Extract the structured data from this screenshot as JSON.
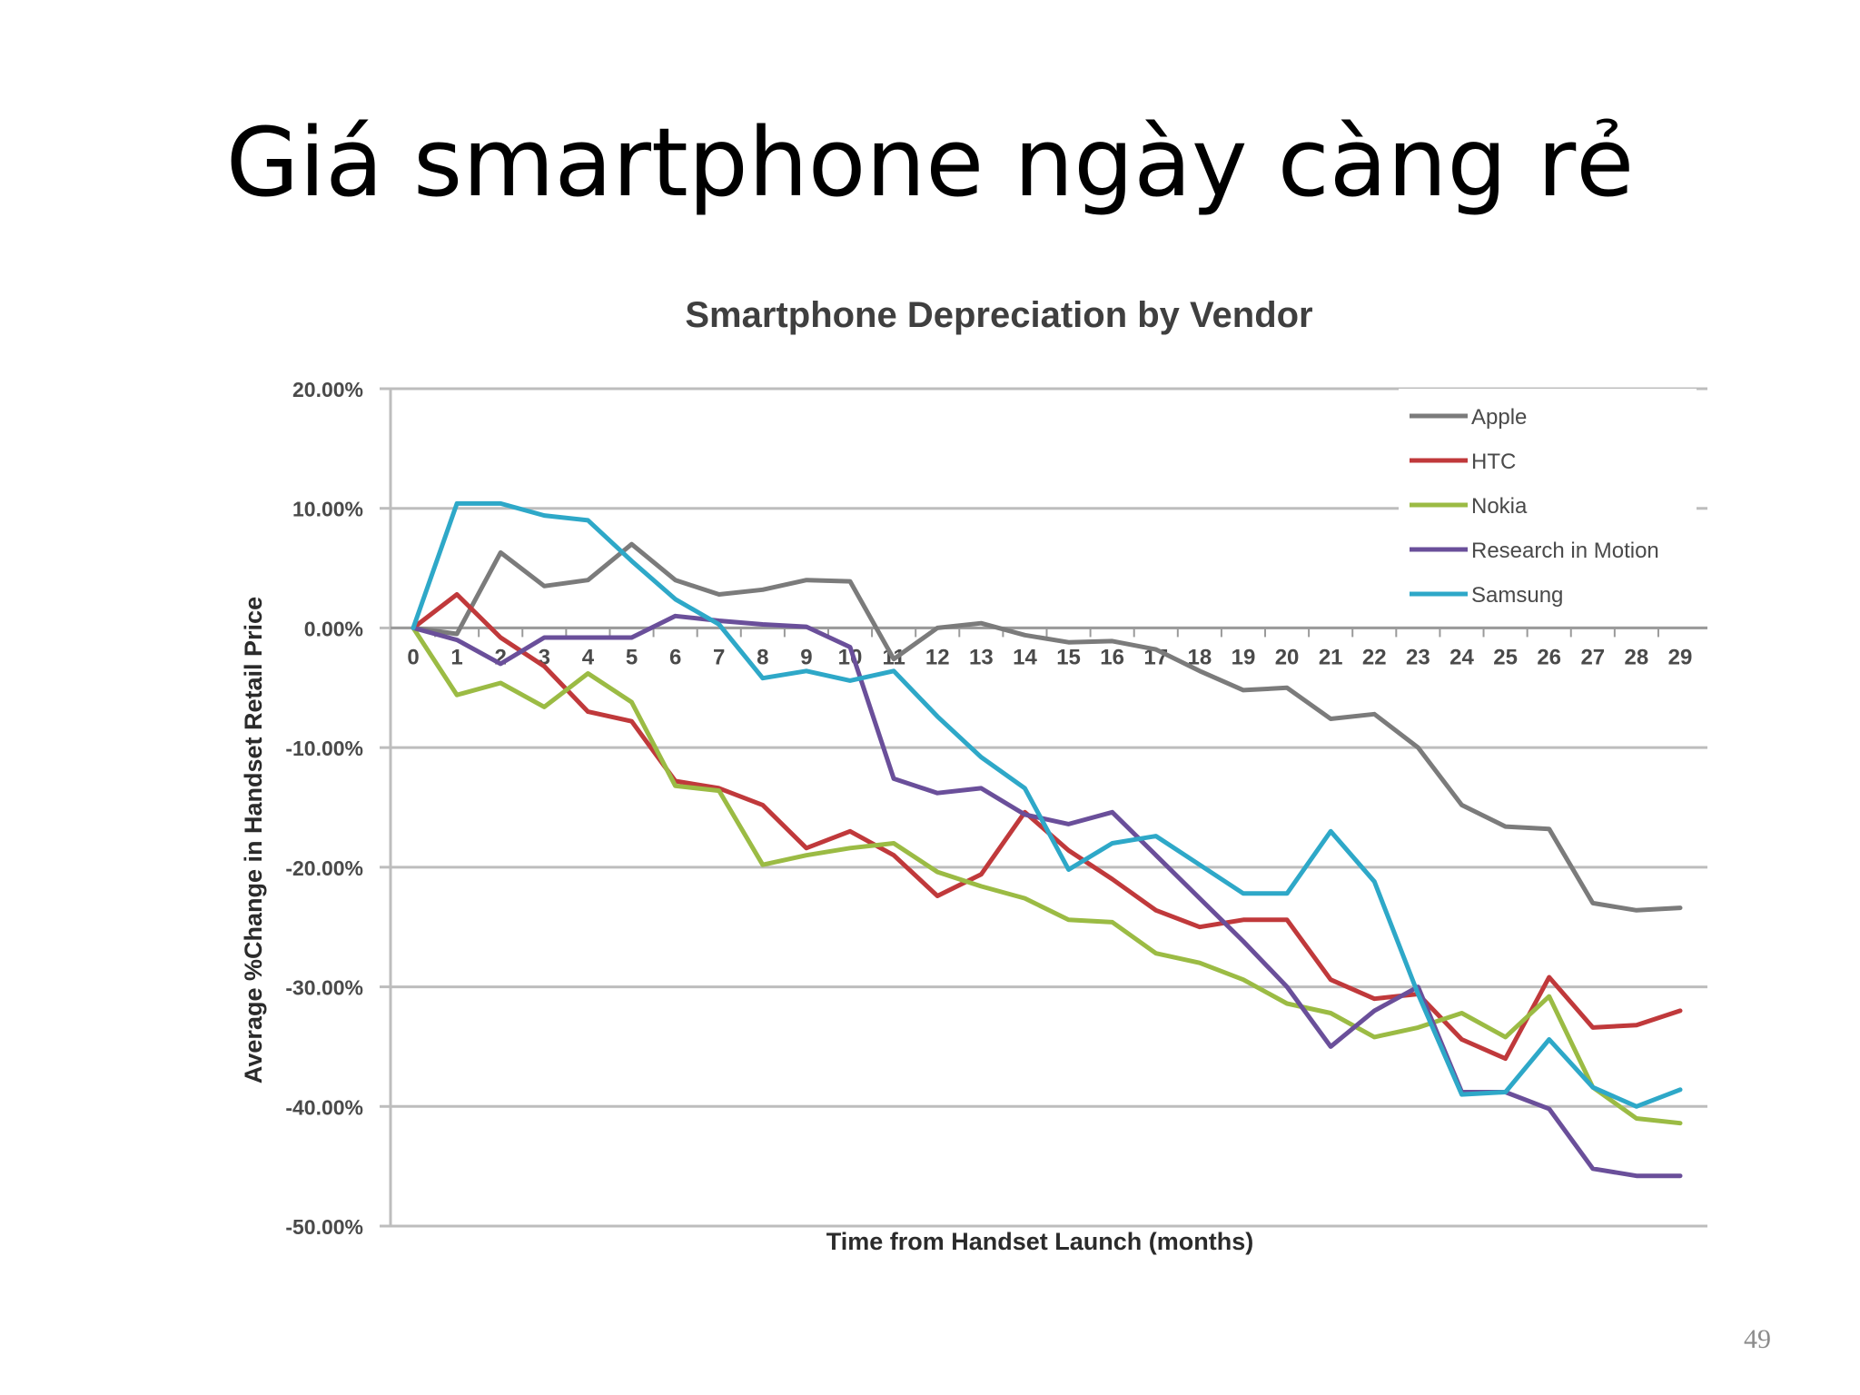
{
  "slide": {
    "title": "Giá smartphone ngày càng rẻ",
    "page_number": "49"
  },
  "chart_data": {
    "type": "line",
    "title": "Smartphone Depreciation by Vendor",
    "xlabel": "Time from Handset Launch (months)",
    "ylabel": "Average %Change in Handset Retail Price",
    "x": [
      0,
      1,
      2,
      3,
      4,
      5,
      6,
      7,
      8,
      9,
      10,
      11,
      12,
      13,
      14,
      15,
      16,
      17,
      18,
      19,
      20,
      21,
      22,
      23,
      24,
      25,
      26,
      27,
      28,
      29
    ],
    "ylim": [
      -50,
      20
    ],
    "yticks": [
      20,
      10,
      0,
      -10,
      -20,
      -30,
      -40,
      -50
    ],
    "ytick_labels": [
      "20.00%",
      "10.00%",
      "0.00%",
      "-10.00%",
      "-20.00%",
      "-30.00%",
      "-40.00%",
      "-50.00%"
    ],
    "xtick_labels": [
      "0",
      "1",
      "2",
      "3",
      "4",
      "5",
      "6",
      "7",
      "8",
      "9",
      "10",
      "11",
      "12",
      "13",
      "14",
      "15",
      "16",
      "17",
      "18",
      "19",
      "20",
      "21",
      "22",
      "23",
      "24",
      "25",
      "26",
      "27",
      "28",
      "29"
    ],
    "grid": "horizontal",
    "legend_position": "top-right",
    "series": [
      {
        "name": "Apple",
        "color": "#7b7b7b",
        "values": [
          0,
          -0.5,
          6.3,
          3.5,
          4,
          7,
          4,
          2.8,
          3.2,
          4,
          3.9,
          -2.6,
          0,
          0.4,
          -0.6,
          -1.2,
          -1.1,
          -1.8,
          -3.6,
          -5.2,
          -5,
          -7.6,
          -7.2,
          -10,
          -14.8,
          -16.6,
          -16.8,
          -23,
          -23.6,
          -23.4
        ]
      },
      {
        "name": "HTC",
        "color": "#c0393b",
        "values": [
          0,
          2.8,
          -0.8,
          -3.2,
          -7,
          -7.8,
          -12.8,
          -13.4,
          -14.8,
          -18.4,
          -17,
          -19,
          -22.4,
          -20.6,
          -15.4,
          -18.6,
          -21,
          -23.6,
          -25,
          -24.4,
          -24.4,
          -29.4,
          -31,
          -30.6,
          -34.4,
          -36,
          -29.2,
          -33.4,
          -33.2,
          -32
        ]
      },
      {
        "name": "Nokia",
        "color": "#9bbb44",
        "values": [
          0,
          -5.6,
          -4.6,
          -6.6,
          -3.8,
          -6.2,
          -13.2,
          -13.6,
          -19.8,
          -19,
          -18.4,
          -18,
          -20.4,
          -21.6,
          -22.6,
          -24.4,
          -24.6,
          -27.2,
          -28,
          -29.4,
          -31.4,
          -32.2,
          -34.2,
          -33.4,
          -32.2,
          -34.2,
          -30.8,
          -38.4,
          -41,
          -41.4
        ]
      },
      {
        "name": "Research in Motion",
        "color": "#6a4f9a",
        "values": [
          0,
          -1,
          -3,
          -0.8,
          -0.8,
          -0.8,
          1,
          0.6,
          0.3,
          0.1,
          -1.6,
          -12.6,
          -13.8,
          -13.4,
          -15.6,
          -16.4,
          -15.4,
          -19,
          -22.6,
          -26.2,
          -30,
          -35,
          -32,
          -30,
          -38.8,
          -38.8,
          -40.2,
          -45.2,
          -45.8,
          -45.8
        ]
      },
      {
        "name": "Samsung",
        "color": "#2ea8c8",
        "values": [
          0,
          10.4,
          10.4,
          9.4,
          9,
          5.6,
          2.4,
          0.3,
          -4.2,
          -3.6,
          -4.4,
          -3.6,
          -7.4,
          -10.8,
          -13.4,
          -20.2,
          -18,
          -17.4,
          -19.8,
          -22.2,
          -22.2,
          -17,
          -21.2,
          -30.6,
          -39,
          -38.8,
          -34.4,
          -38.4,
          -40,
          -38.6
        ]
      }
    ]
  }
}
